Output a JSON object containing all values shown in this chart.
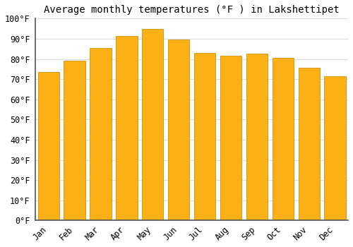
{
  "title": "Average monthly temperatures (°F ) in Lakshettipet",
  "months": [
    "Jan",
    "Feb",
    "Mar",
    "Apr",
    "May",
    "Jun",
    "Jul",
    "Aug",
    "Sep",
    "Oct",
    "Nov",
    "Dec"
  ],
  "values": [
    73.5,
    79.0,
    85.5,
    91.5,
    95.0,
    89.5,
    83.0,
    81.5,
    82.5,
    80.5,
    75.5,
    71.5
  ],
  "bar_color_face": "#FBB116",
  "bar_color_edge": "#D4910A",
  "background_color": "#FFFFFF",
  "plot_bg_color": "#FFFFFF",
  "ylim": [
    0,
    100
  ],
  "ytick_step": 10,
  "grid_color": "#DDDDDD",
  "title_fontsize": 10,
  "tick_fontsize": 8.5,
  "bar_width": 0.82
}
